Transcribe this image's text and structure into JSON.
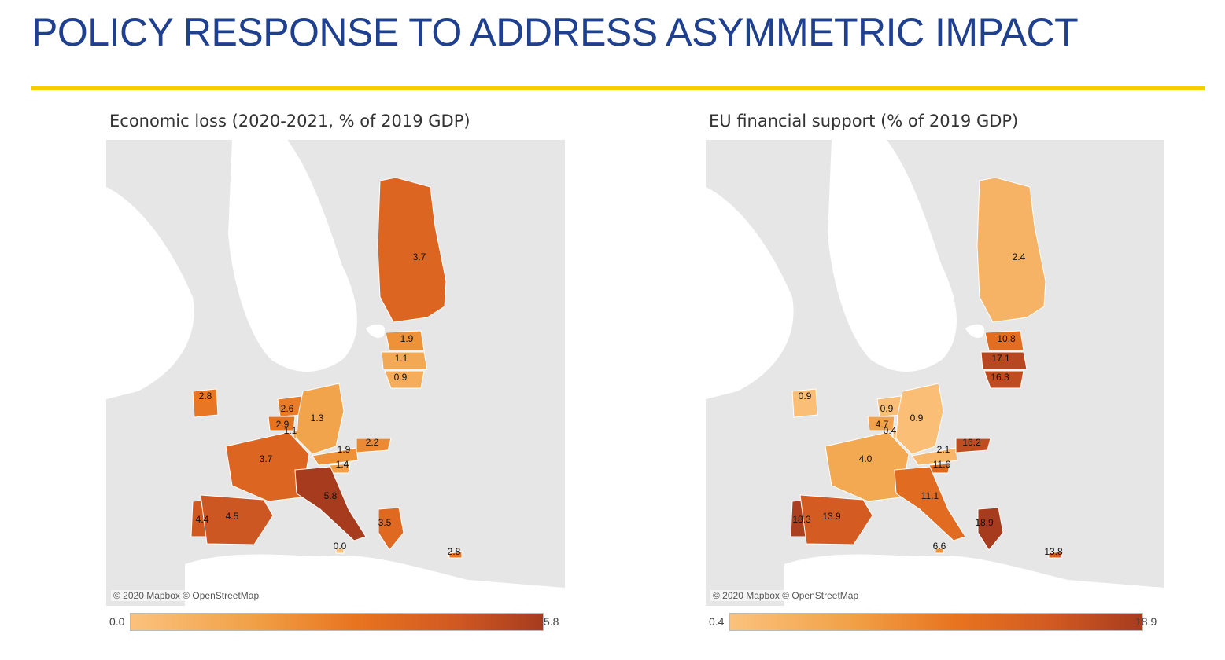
{
  "slide_title": "POLICY RESPONSE TO ADDRESS ASYMMETRIC IMPACT",
  "colors": {
    "title": "#1f3f8f",
    "rule": "#f2cf00",
    "low": "#fbc27d",
    "mid": "#e8731f",
    "high": "#a63b1e",
    "land": "#e5e5e5",
    "sea": "#ffffff"
  },
  "maps": [
    {
      "title": "Economic loss (2020-2021, % of 2019 GDP)",
      "credit": "© 2020 Mapbox © OpenStreetMap",
      "legend": {
        "min": "0.0",
        "max": "5.8"
      },
      "values": [
        {
          "country": "Finland",
          "value": "3.7"
        },
        {
          "country": "Estonia",
          "value": "1.9"
        },
        {
          "country": "Latvia",
          "value": "1.1"
        },
        {
          "country": "Lithuania",
          "value": "0.9"
        },
        {
          "country": "Ireland",
          "value": "2.8"
        },
        {
          "country": "Netherlands",
          "value": "2.6"
        },
        {
          "country": "Belgium",
          "value": "2.9"
        },
        {
          "country": "Luxembourg",
          "value": "1.1"
        },
        {
          "country": "Germany",
          "value": "1.3"
        },
        {
          "country": "Austria",
          "value": "1.9"
        },
        {
          "country": "Slovakia",
          "value": "2.2"
        },
        {
          "country": "Slovenia",
          "value": "1.4"
        },
        {
          "country": "France",
          "value": "3.7"
        },
        {
          "country": "Italy",
          "value": "5.8"
        },
        {
          "country": "Portugal",
          "value": "4.4"
        },
        {
          "country": "Spain",
          "value": "4.5"
        },
        {
          "country": "Greece",
          "value": "3.5"
        },
        {
          "country": "Malta",
          "value": "0.0"
        },
        {
          "country": "Cyprus",
          "value": "2.8"
        }
      ]
    },
    {
      "title": "EU financial support (% of 2019 GDP)",
      "credit": "© 2020 Mapbox © OpenStreetMap",
      "legend": {
        "min": "0.4",
        "max": "18.9"
      },
      "values": [
        {
          "country": "Finland",
          "value": "2.4"
        },
        {
          "country": "Estonia",
          "value": "10.8"
        },
        {
          "country": "Latvia",
          "value": "17.1"
        },
        {
          "country": "Lithuania",
          "value": "16.3"
        },
        {
          "country": "Ireland",
          "value": "0.9"
        },
        {
          "country": "Netherlands",
          "value": "0.9"
        },
        {
          "country": "Belgium",
          "value": "4.7"
        },
        {
          "country": "Luxembourg",
          "value": "0.4"
        },
        {
          "country": "Germany",
          "value": "0.9"
        },
        {
          "country": "Austria",
          "value": "2.1"
        },
        {
          "country": "Slovakia",
          "value": "16.2"
        },
        {
          "country": "Slovenia",
          "value": "11.6"
        },
        {
          "country": "France",
          "value": "4.0"
        },
        {
          "country": "Italy",
          "value": "11.1"
        },
        {
          "country": "Portugal",
          "value": "18.3"
        },
        {
          "country": "Spain",
          "value": "13.9"
        },
        {
          "country": "Greece",
          "value": "18.9"
        },
        {
          "country": "Malta",
          "value": "6.6"
        },
        {
          "country": "Cyprus",
          "value": "13.8"
        }
      ]
    }
  ]
}
